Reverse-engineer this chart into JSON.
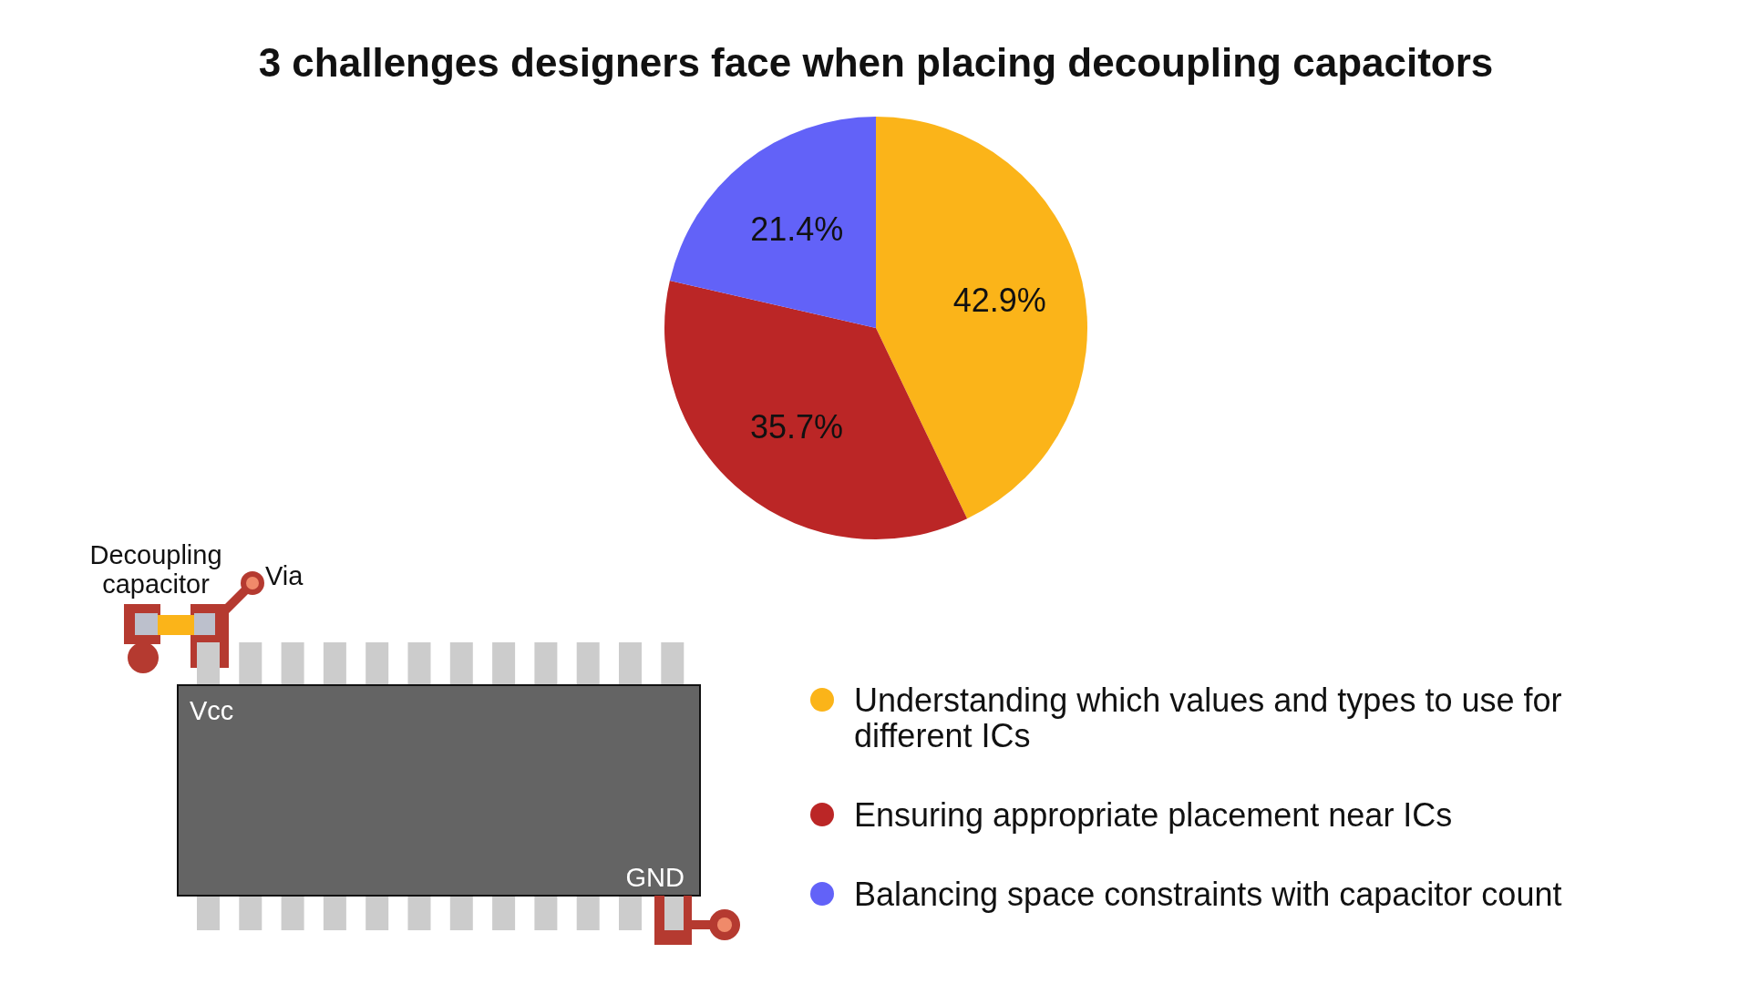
{
  "chart_data": {
    "type": "pie",
    "title": "3 challenges designers face when placing decoupling capacitors",
    "categories": [
      "Understanding which values and types to use for different ICs",
      "Ensuring appropriate placement near ICs",
      "Balancing space constraints with capacitor count"
    ],
    "values": [
      42.9,
      35.7,
      21.4
    ],
    "colors": [
      "#fbb419",
      "#bb2626",
      "#6262f8"
    ],
    "value_labels": [
      "42.9%",
      "35.7%",
      "21.4%"
    ],
    "legend": "bottom right",
    "annotations": [
      "Decoupling capacitor",
      "Via",
      "Vcc",
      "GND"
    ]
  }
}
